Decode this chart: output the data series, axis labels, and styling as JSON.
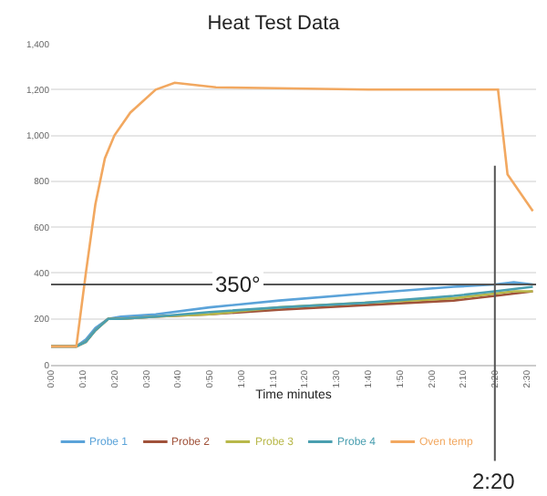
{
  "chart_data": {
    "type": "line",
    "title": "Heat Test Data",
    "xlabel": "Time minutes",
    "x": [
      0,
      0.133,
      0.183,
      0.233,
      0.3,
      0.367,
      0.55,
      0.833,
      1.2,
      1.65,
      2.117,
      2.333,
      2.433,
      2.533
    ],
    "series": [
      {
        "name": "Probe 1",
        "color": "#5ba3d9",
        "values": [
          80,
          80,
          110,
          160,
          200,
          210,
          220,
          250,
          280,
          310,
          340,
          350,
          360,
          350
        ]
      },
      {
        "name": "Probe 2",
        "color": "#a0523a",
        "values": [
          80,
          80,
          100,
          150,
          200,
          200,
          210,
          220,
          240,
          260,
          280,
          300,
          310,
          320
        ]
      },
      {
        "name": "Probe 3",
        "color": "#b8b84a",
        "values": [
          80,
          80,
          100,
          150,
          200,
          200,
          210,
          220,
          250,
          270,
          290,
          310,
          320,
          320
        ]
      },
      {
        "name": "Probe 4",
        "color": "#4a9fb0",
        "values": [
          80,
          80,
          100,
          150,
          200,
          200,
          210,
          230,
          250,
          270,
          300,
          320,
          330,
          340
        ]
      },
      {
        "name": "Oven temp",
        "color": "#f2a860",
        "x": [
          0,
          0.133,
          0.183,
          0.233,
          0.283,
          0.333,
          0.417,
          0.55,
          0.65,
          0.867,
          1.667,
          2.35,
          2.4,
          2.533
        ],
        "values": [
          80,
          80,
          400,
          700,
          900,
          1000,
          1100,
          1200,
          1230,
          1210,
          1200,
          1200,
          830,
          670
        ]
      }
    ],
    "xlim": [
      0,
      2.55
    ],
    "ylim": [
      0,
      1400
    ],
    "xticks": [
      {
        "value": 0,
        "label": "0:00"
      },
      {
        "value": 0.1667,
        "label": "0:10"
      },
      {
        "value": 0.3333,
        "label": "0:20"
      },
      {
        "value": 0.5,
        "label": "0:30"
      },
      {
        "value": 0.6667,
        "label": "0:40"
      },
      {
        "value": 0.8333,
        "label": "0:50"
      },
      {
        "value": 1,
        "label": "1:00"
      },
      {
        "value": 1.1667,
        "label": "1:10"
      },
      {
        "value": 1.3333,
        "label": "1:20"
      },
      {
        "value": 1.5,
        "label": "1:30"
      },
      {
        "value": 1.6667,
        "label": "1:40"
      },
      {
        "value": 1.8333,
        "label": "1:50"
      },
      {
        "value": 2,
        "label": "2:00"
      },
      {
        "value": 2.1667,
        "label": "2:10"
      },
      {
        "value": 2.3333,
        "label": "2:20"
      },
      {
        "value": 2.5,
        "label": "2:30"
      }
    ],
    "yticks": [
      0,
      200,
      400,
      600,
      800,
      {
        "value": 1000,
        "label": "1,000"
      },
      {
        "value": 1200,
        "label": "1,200"
      },
      {
        "value": 1400,
        "label": "1,400"
      }
    ],
    "grid": "y",
    "legend": "bottom",
    "marker": "none",
    "line_style": "solid",
    "ref_lines": [
      {
        "axis": "y",
        "value": 350,
        "label": "350°",
        "color": "#555555"
      },
      {
        "axis": "x",
        "value": 2.3333,
        "label": "2:20",
        "color": "#555555"
      }
    ]
  }
}
